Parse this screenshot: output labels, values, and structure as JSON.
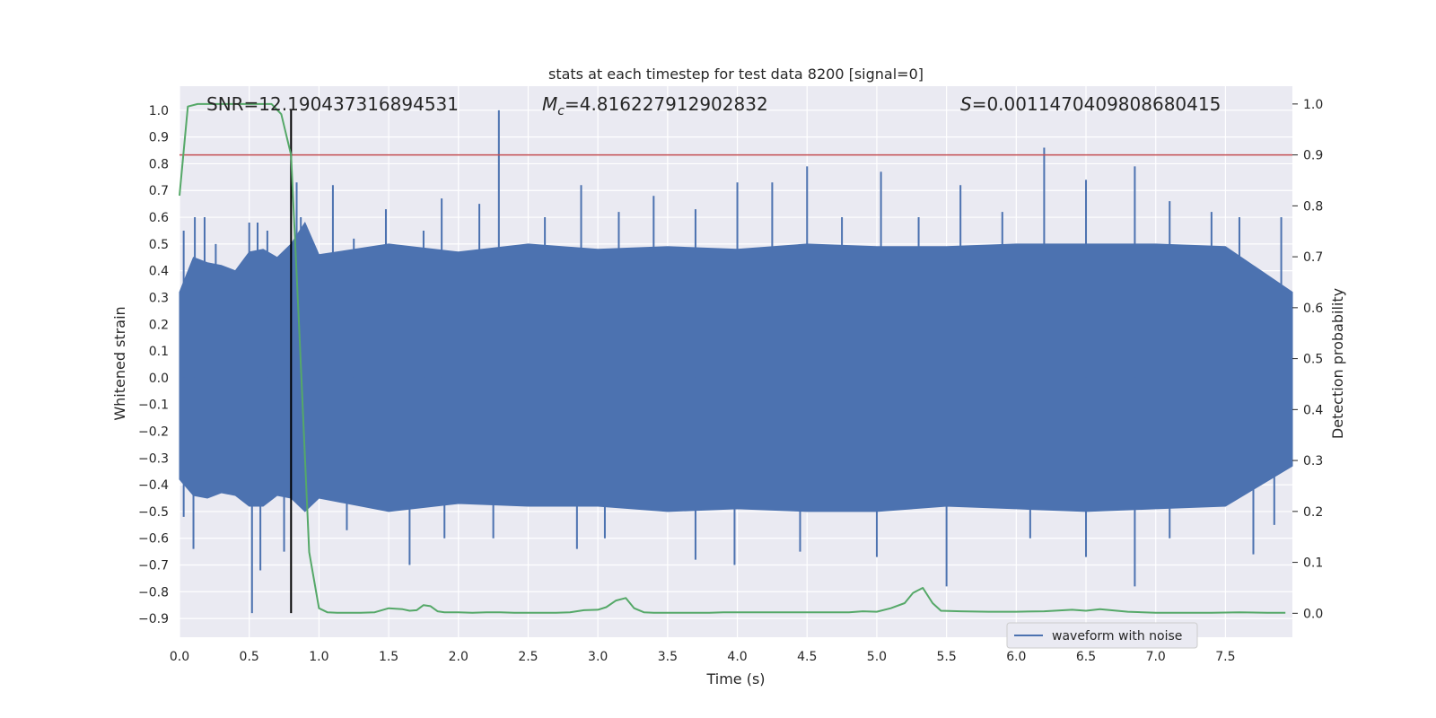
{
  "chart_data": {
    "type": "line",
    "title": "stats at each timestep for test data 8200 [signal=0]",
    "xlabel": "Time (s)",
    "ylabel_left": "Whitened strain",
    "ylabel_right": "Detection probability",
    "xlim": [
      0,
      7.98
    ],
    "ylim_left": [
      -0.97,
      1.09
    ],
    "ylim_right": [
      -0.047,
      1.035
    ],
    "x_ticks": [
      0.0,
      0.5,
      1.0,
      1.5,
      2.0,
      2.5,
      3.0,
      3.5,
      4.0,
      4.5,
      5.0,
      5.5,
      6.0,
      6.5,
      7.0,
      7.5
    ],
    "x_tick_labels": [
      "0.0",
      "0.5",
      "1.0",
      "1.5",
      "2.0",
      "2.5",
      "3.0",
      "3.5",
      "4.0",
      "4.5",
      "5.0",
      "5.5",
      "6.0",
      "6.5",
      "7.0",
      "7.5"
    ],
    "y_left_ticks": [
      1.0,
      0.9,
      0.8,
      0.7,
      0.6,
      0.5,
      0.4,
      0.3,
      0.2,
      0.1,
      0.0,
      -0.1,
      -0.2,
      -0.3,
      -0.4,
      -0.5,
      -0.6,
      -0.7,
      -0.8,
      -0.9
    ],
    "y_left_tick_labels": [
      "1.0",
      "0.9",
      "0.8",
      "0.7",
      "0.6",
      "0.5",
      "0.4",
      "0.3",
      "0.2",
      "0.1",
      "0.0",
      "−0.1",
      "−0.2",
      "−0.3",
      "−0.4",
      "−0.5",
      "−0.6",
      "−0.7",
      "−0.8",
      "−0.9"
    ],
    "y_right_ticks": [
      1.0,
      0.9,
      0.8,
      0.7,
      0.6,
      0.5,
      0.4,
      0.3,
      0.2,
      0.1,
      0.0
    ],
    "y_right_tick_labels": [
      "1.0",
      "0.9",
      "0.8",
      "0.7",
      "0.6",
      "0.5",
      "0.4",
      "0.3",
      "0.2",
      "0.1",
      "0.0"
    ],
    "grid": true,
    "legend_placement": "lower-right",
    "annotations": {
      "snr": "SNR=12.190437316894531",
      "mc_symbol": "M",
      "mc_sub": "c",
      "mc_value": "=4.816227912902832",
      "s_symbol": "S",
      "s_value": "=0.0011470409808680415"
    },
    "vertical_line_x": 0.8,
    "threshold_probability": 0.9,
    "series": [
      {
        "name": "waveform with noise",
        "axis": "left",
        "color": "#4c72b0",
        "envelope": {
          "x": [
            0.0,
            0.1,
            0.2,
            0.3,
            0.4,
            0.5,
            0.6,
            0.7,
            0.8,
            0.9,
            1.0,
            1.5,
            2.0,
            2.5,
            3.0,
            3.5,
            4.0,
            4.5,
            5.0,
            5.5,
            6.0,
            6.5,
            7.0,
            7.5,
            7.98
          ],
          "upper": [
            0.32,
            0.45,
            0.43,
            0.42,
            0.4,
            0.47,
            0.48,
            0.45,
            0.5,
            0.58,
            0.46,
            0.5,
            0.47,
            0.5,
            0.48,
            0.49,
            0.48,
            0.5,
            0.49,
            0.49,
            0.5,
            0.5,
            0.5,
            0.49,
            0.32
          ],
          "lower": [
            -0.38,
            -0.44,
            -0.45,
            -0.43,
            -0.44,
            -0.48,
            -0.48,
            -0.44,
            -0.45,
            -0.5,
            -0.45,
            -0.5,
            -0.47,
            -0.48,
            -0.48,
            -0.5,
            -0.49,
            -0.5,
            -0.5,
            -0.48,
            -0.49,
            -0.5,
            -0.49,
            -0.48,
            -0.33
          ]
        },
        "spikes": [
          {
            "x": 0.03,
            "y": 0.55
          },
          {
            "x": 0.11,
            "y": 0.6
          },
          {
            "x": 0.18,
            "y": 0.6
          },
          {
            "x": 0.26,
            "y": 0.5
          },
          {
            "x": 0.5,
            "y": 0.58
          },
          {
            "x": 0.56,
            "y": 0.58
          },
          {
            "x": 0.63,
            "y": 0.55
          },
          {
            "x": 0.84,
            "y": 0.73
          },
          {
            "x": 0.87,
            "y": 0.6
          },
          {
            "x": 1.1,
            "y": 0.72
          },
          {
            "x": 1.25,
            "y": 0.52
          },
          {
            "x": 1.48,
            "y": 0.63
          },
          {
            "x": 1.75,
            "y": 0.55
          },
          {
            "x": 1.88,
            "y": 0.67
          },
          {
            "x": 2.15,
            "y": 0.65
          },
          {
            "x": 2.29,
            "y": 1.0
          },
          {
            "x": 2.62,
            "y": 0.6
          },
          {
            "x": 2.88,
            "y": 0.72
          },
          {
            "x": 3.15,
            "y": 0.62
          },
          {
            "x": 3.4,
            "y": 0.68
          },
          {
            "x": 3.7,
            "y": 0.63
          },
          {
            "x": 4.0,
            "y": 0.73
          },
          {
            "x": 4.25,
            "y": 0.73
          },
          {
            "x": 4.5,
            "y": 0.79
          },
          {
            "x": 4.75,
            "y": 0.6
          },
          {
            "x": 5.03,
            "y": 0.77
          },
          {
            "x": 5.3,
            "y": 0.6
          },
          {
            "x": 5.6,
            "y": 0.72
          },
          {
            "x": 5.9,
            "y": 0.62
          },
          {
            "x": 6.2,
            "y": 0.86
          },
          {
            "x": 6.5,
            "y": 0.74
          },
          {
            "x": 6.85,
            "y": 0.79
          },
          {
            "x": 7.1,
            "y": 0.66
          },
          {
            "x": 7.4,
            "y": 0.62
          },
          {
            "x": 7.6,
            "y": 0.6
          },
          {
            "x": 7.9,
            "y": 0.6
          },
          {
            "x": 0.03,
            "y": -0.52
          },
          {
            "x": 0.1,
            "y": -0.64
          },
          {
            "x": 0.52,
            "y": -0.88
          },
          {
            "x": 0.58,
            "y": -0.72
          },
          {
            "x": 0.75,
            "y": -0.65
          },
          {
            "x": 1.2,
            "y": -0.57
          },
          {
            "x": 1.65,
            "y": -0.7
          },
          {
            "x": 1.9,
            "y": -0.6
          },
          {
            "x": 2.25,
            "y": -0.6
          },
          {
            "x": 2.85,
            "y": -0.64
          },
          {
            "x": 3.05,
            "y": -0.6
          },
          {
            "x": 3.7,
            "y": -0.68
          },
          {
            "x": 3.98,
            "y": -0.7
          },
          {
            "x": 4.45,
            "y": -0.65
          },
          {
            "x": 5.0,
            "y": -0.67
          },
          {
            "x": 5.5,
            "y": -0.78
          },
          {
            "x": 6.1,
            "y": -0.6
          },
          {
            "x": 6.5,
            "y": -0.67
          },
          {
            "x": 6.85,
            "y": -0.78
          },
          {
            "x": 7.1,
            "y": -0.6
          },
          {
            "x": 7.7,
            "y": -0.66
          },
          {
            "x": 7.85,
            "y": -0.55
          }
        ]
      },
      {
        "name": "",
        "axis": "right",
        "color": "#55a868",
        "x": [
          0.0,
          0.06,
          0.13,
          0.2,
          0.3,
          0.4,
          0.5,
          0.6,
          0.66,
          0.73,
          0.8,
          0.86,
          0.93,
          1.0,
          1.06,
          1.13,
          1.2,
          1.3,
          1.4,
          1.5,
          1.6,
          1.65,
          1.7,
          1.75,
          1.8,
          1.85,
          1.9,
          2.0,
          2.1,
          2.2,
          2.3,
          2.4,
          2.5,
          2.6,
          2.7,
          2.8,
          2.9,
          3.0,
          3.06,
          3.13,
          3.2,
          3.26,
          3.33,
          3.4,
          3.5,
          3.6,
          3.7,
          3.8,
          3.9,
          4.0,
          4.2,
          4.4,
          4.6,
          4.8,
          4.9,
          5.0,
          5.1,
          5.2,
          5.26,
          5.33,
          5.4,
          5.46,
          5.6,
          5.8,
          6.0,
          6.2,
          6.4,
          6.5,
          6.6,
          6.8,
          7.0,
          7.2,
          7.4,
          7.6,
          7.8,
          7.93
        ],
        "y": [
          0.82,
          0.995,
          1.0,
          1.0,
          1.0,
          1.0,
          1.0,
          1.0,
          1.0,
          0.98,
          0.9,
          0.55,
          0.12,
          0.01,
          0.002,
          0.001,
          0.001,
          0.001,
          0.002,
          0.01,
          0.008,
          0.005,
          0.006,
          0.016,
          0.014,
          0.004,
          0.002,
          0.002,
          0.001,
          0.002,
          0.002,
          0.001,
          0.001,
          0.001,
          0.001,
          0.002,
          0.006,
          0.007,
          0.012,
          0.025,
          0.03,
          0.01,
          0.002,
          0.001,
          0.001,
          0.001,
          0.001,
          0.001,
          0.002,
          0.002,
          0.002,
          0.002,
          0.002,
          0.002,
          0.004,
          0.003,
          0.01,
          0.02,
          0.04,
          0.05,
          0.02,
          0.005,
          0.004,
          0.003,
          0.003,
          0.004,
          0.007,
          0.005,
          0.008,
          0.003,
          0.001,
          0.001,
          0.001,
          0.002,
          0.001,
          0.001
        ]
      }
    ]
  }
}
